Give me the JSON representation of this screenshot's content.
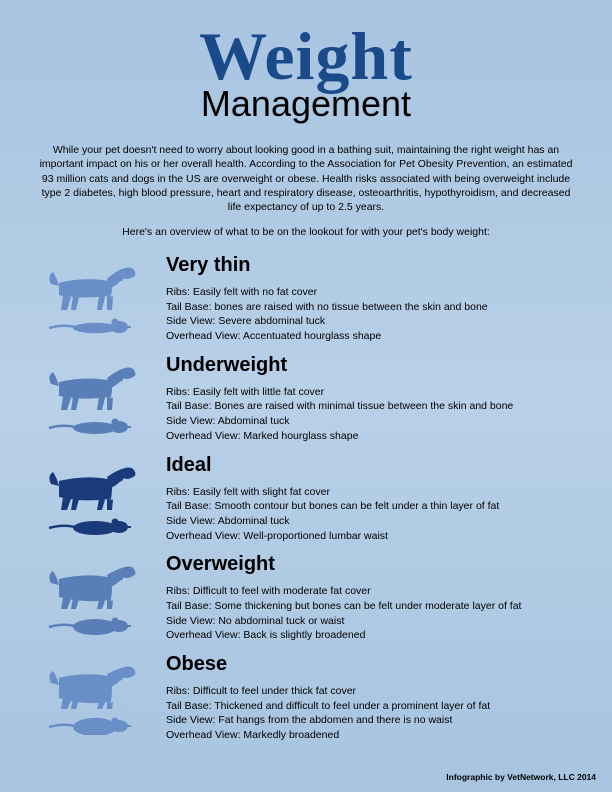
{
  "title": {
    "main": "Weight",
    "sub": "Management"
  },
  "intro": "While your pet doesn't need to worry about looking good in a bathing suit, maintaining the right weight has an important impact on his or her overall health. According to the Association for Pet Obesity Prevention, an estimated 93 million cats and dogs in the US are overweight or obese. Health risks associated with being overweight include type 2 diabetes, high blood pressure, heart and respiratory disease, osteoarthritis, hypothyroidism, and decreased life expectancy of up to 2.5 years.",
  "overview": "Here's an overview of what to be on the lookout for with your pet's body weight:",
  "categories": [
    {
      "name": "Very thin",
      "bodyScale": 0.75,
      "fill": "#6a8fc8",
      "ribs": "Ribs: Easily felt with no fat cover",
      "tail": "Tail Base: bones are raised with no tissue between the skin and bone",
      "side": "Side View: Severe abdominal tuck",
      "overhead": "Overhead View: Accentuated hourglass shape"
    },
    {
      "name": "Underweight",
      "bodyScale": 0.85,
      "fill": "#5a7fb8",
      "ribs": "Ribs: Easily felt with little fat cover",
      "tail": "Tail Base: Bones are raised with minimal tissue between the skin and bone",
      "side": "Side View: Abdominal tuck",
      "overhead": "Overhead View: Marked hourglass shape"
    },
    {
      "name": "Ideal",
      "bodyScale": 1.0,
      "fill": "#1a3a7a",
      "ribs": "Ribs: Easily felt with slight fat cover",
      "tail": "Tail Base: Smooth contour but bones can be felt under a thin layer of fat",
      "side": "Side View: Abdominal tuck",
      "overhead": "Overhead View: Well-proportioned lumbar waist"
    },
    {
      "name": "Overweight",
      "bodyScale": 1.15,
      "fill": "#5a7fb8",
      "ribs": "Ribs: Difficult to feel with moderate fat cover",
      "tail": "Tail Base: Some thickening but bones can be felt under moderate layer of fat",
      "side": "Side View: No abdominal tuck or waist",
      "overhead": "Overhead View: Back is slightly broadened"
    },
    {
      "name": "Obese",
      "bodyScale": 1.3,
      "fill": "#6a8fc8",
      "ribs": "Ribs: Difficult to feel under thick fat cover",
      "tail": "Tail Base: Thickened and difficult to feel under a prominent layer of fat",
      "side": "Side View: Fat hangs from the abdomen and there is no waist",
      "overhead": "Overhead View: Markedly broadened"
    }
  ],
  "credit": "Infographic by VetNetwork, LLC 2014",
  "colors": {
    "titleMain": "#1a4a8a",
    "text": "#000000",
    "bgTop": "#a8c4e0",
    "bgBottom": "#a8c4e0"
  }
}
